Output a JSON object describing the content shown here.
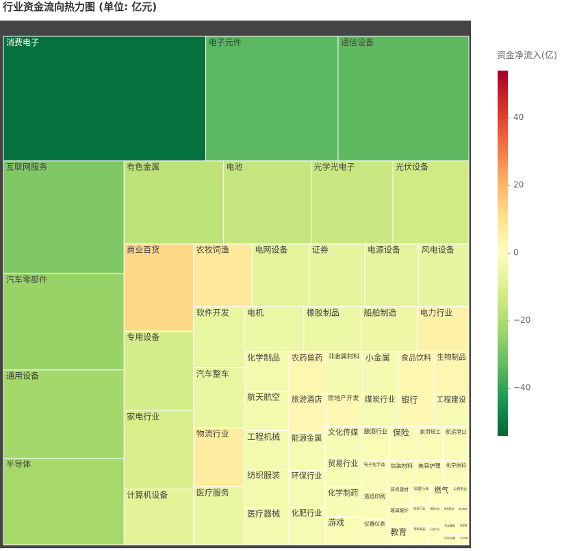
{
  "chart_data": {
    "type": "treemap",
    "title": "行业资金流向热力图 (单位: 亿元)",
    "colorbar_title": "资金净流入(亿)",
    "categories": [
      "消费电子",
      "电子元件",
      "通信设备",
      "互联网服务",
      "汽车零部件",
      "通用设备",
      "半导体",
      "有色金属",
      "电池",
      "光学光电子",
      "光伏设备",
      "商业百货",
      "专用设备",
      "家电行业",
      "计算机设备",
      "农牧饲渔",
      "电网设备",
      "证券",
      "电源设备",
      "风电设备",
      "软件开发",
      "汽车整车",
      "物流行业",
      "医疗服务",
      "电机",
      "橡胶制品",
      "船舶制造",
      "电力行业",
      "化学制品",
      "航天航空",
      "工程机械",
      "纺织服装",
      "医疗器械",
      "农药兽药",
      "非金属材料",
      "小金属",
      "食品饮料",
      "生物制品",
      "旅游酒店",
      "能源金属",
      "环保行业",
      "化肥行业",
      "房地产开发",
      "煤炭行业",
      "银行",
      "工程建设",
      "文化传媒",
      "贸易行业",
      "化学制药",
      "游戏",
      "酿酒行业",
      "保险",
      "家用轻工",
      "航运港口",
      "电子化学品",
      "造纸印刷",
      "仪器仪表",
      "包装材料",
      "美容护理",
      "化学原料",
      "装修建材",
      "玻璃玻纤",
      "教育",
      "采掘行业",
      "燃气",
      "公用事业",
      "综合行业",
      "塑料制品",
      "钢铁行业",
      "石油行业",
      "珠宝首饰",
      "多元金融",
      "专业服务",
      "交运设备",
      "贵金属",
      "水泥建材"
    ],
    "values": [
      -52,
      -34,
      -33.6,
      -28,
      -24,
      -22,
      -21.5,
      -17,
      -15,
      -14,
      -13,
      12.5,
      -11.4,
      -11.2,
      -8,
      7.6,
      -7.4,
      -7.2,
      -7,
      -6.5,
      -6.4,
      -6.3,
      6.2,
      -6.1,
      -5.5,
      -5.3,
      -5.2,
      4.8,
      -3.6,
      -3.6,
      -3.5,
      -3.5,
      -3.4,
      3.2,
      -3.2,
      -3.1,
      3.1,
      3.0,
      2.9,
      -2.85,
      -2.8,
      -2.8,
      2.5,
      -2.5,
      2.4,
      -2.4,
      -2.3,
      -2.2,
      -2.2,
      -2.1,
      -2.0,
      -1.9,
      -1.8,
      -1.8,
      -1.7,
      -1.5,
      -1.4,
      -1.4,
      -1.4,
      -1.3,
      -1.0,
      -0.95,
      -0.9,
      -0.85,
      -0.8,
      -0.75,
      -0.7,
      -0.65,
      -0.6,
      -0.55,
      -0.5,
      -0.45,
      -0.4,
      -0.35,
      -0.3,
      -0.25
    ],
    "colorscale": [
      "#006837",
      "#1a9850",
      "#66bd63",
      "#a6d96a",
      "#d9ef8b",
      "#ffffbf",
      "#fee08b",
      "#fdae61",
      "#f46d43",
      "#d73027",
      "#a50026"
    ],
    "clim": [
      -54,
      54
    ],
    "cticks": [
      {
        "value": 40,
        "label": "40"
      },
      {
        "value": 20,
        "label": "20"
      },
      {
        "value": 0,
        "label": "0"
      },
      {
        "value": -20,
        "label": "−20"
      },
      {
        "value": -40,
        "label": "−40"
      }
    ]
  }
}
